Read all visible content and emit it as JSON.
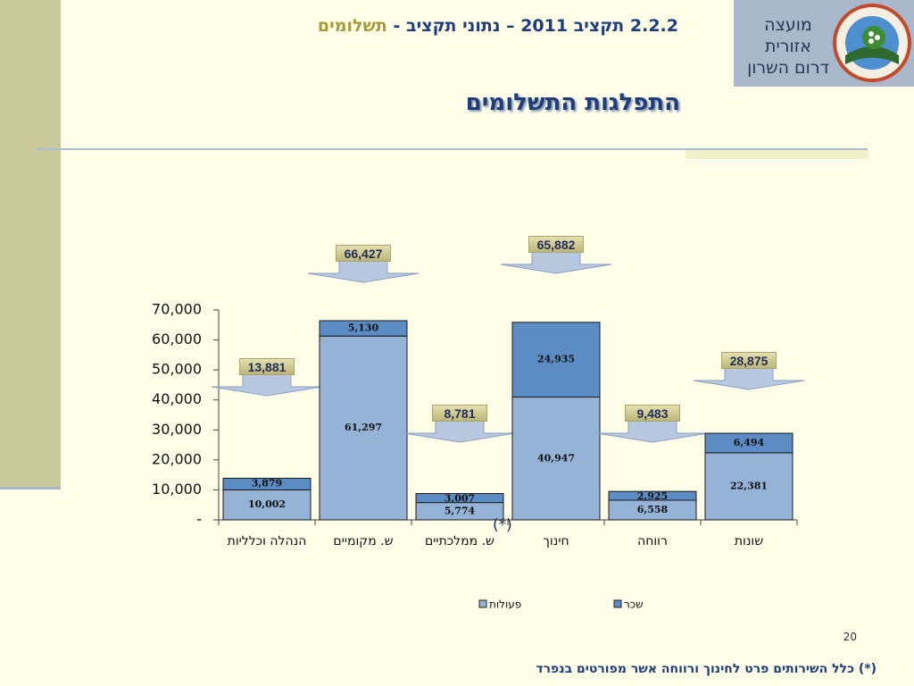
{
  "header": {
    "title_prefix": "2.2.2 תקציב 2011 – נתוני תקציב -",
    "title_highlight": "תשלומים",
    "logo_line1": "מועצה אזורית",
    "logo_line2": "דרום השרון"
  },
  "chart_data": {
    "type": "stacked_bar",
    "title": "התפלגות התשלומים",
    "categories": [
      "הנהלה וכלליות",
      "ש. מקומיים",
      "ש. ממלכתיים",
      "חינוך",
      "רווחה",
      "שונות"
    ],
    "series": [
      {
        "name": "פעולות",
        "color": "#95b3d7",
        "values": [
          10002,
          61297,
          5774,
          40947,
          6558,
          22381
        ],
        "value_labels": [
          "10,002",
          "61,297",
          "5,774",
          "40,947",
          "6,558",
          "22,381"
        ]
      },
      {
        "name": "שכר",
        "color": "#5b8cc4",
        "values": [
          3879,
          5130,
          3007,
          24935,
          2925,
          6494
        ],
        "value_labels": [
          "3,879",
          "5,130",
          "3,007",
          "24,935",
          "2,925",
          "6,494"
        ]
      }
    ],
    "totals": [
      13881,
      66427,
      8781,
      65882,
      9483,
      28875
    ],
    "total_labels": [
      "13,881",
      "66,427",
      "8,781",
      "65,882",
      "9,483",
      "28,875"
    ],
    "ylim": [
      0,
      70000
    ],
    "yticks": [
      {
        "value": 0,
        "label": "-"
      },
      {
        "value": 10000,
        "label": "10,000"
      },
      {
        "value": 20000,
        "label": "20,000"
      },
      {
        "value": 30000,
        "label": "30,000"
      },
      {
        "value": 40000,
        "label": "40,000"
      },
      {
        "value": 50000,
        "label": "50,000"
      },
      {
        "value": 60000,
        "label": "60,000"
      },
      {
        "value": 70000,
        "label": "70,000"
      }
    ],
    "annotation": "(*)",
    "legend": "bottom"
  },
  "footer": {
    "page_number": "20",
    "footnote": "(*) כלל השירותים פרט לחינוך ורווחה אשר מפורטים בנפרד"
  }
}
